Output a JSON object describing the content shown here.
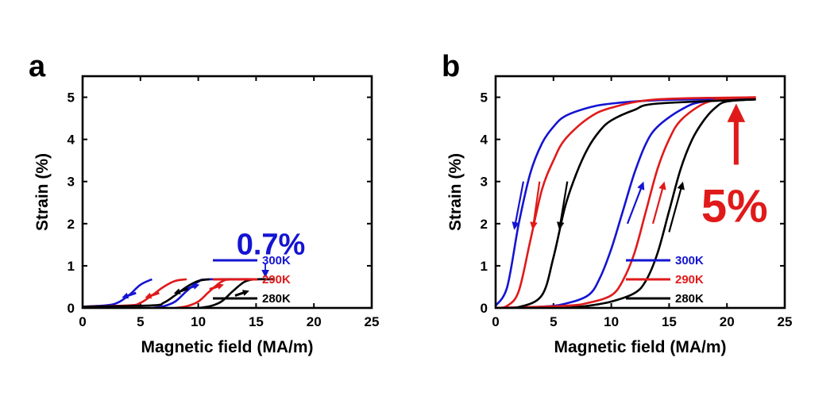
{
  "colors": {
    "300K": "#1414d2",
    "290K": "#e01a1a",
    "280K": "#000000"
  },
  "chart_data": [
    {
      "panel": "a",
      "type": "line",
      "xlabel": "Magnetic field (MA/m)",
      "ylabel": "Strain (%)",
      "xlim": [
        0,
        25
      ],
      "ylim": [
        0,
        5.5
      ],
      "xticks": [
        0,
        5,
        10,
        15,
        20,
        25
      ],
      "yticks": [
        0,
        1,
        2,
        3,
        4,
        5
      ],
      "annotation": {
        "text": "0.7%",
        "color": "#1414d2",
        "arrow_from": [
          15.8,
          1.05
        ],
        "arrow_to": [
          15.8,
          0.68
        ]
      },
      "legend_position": "bottom-right",
      "series": [
        {
          "name": "300K",
          "color": "#1414d2",
          "up": {
            "x": [
              0,
              2,
              3,
              4,
              5,
              6
            ],
            "y": [
              0.03,
              0.06,
              0.12,
              0.3,
              0.55,
              0.68
            ]
          },
          "down": {
            "x": [
              6,
              7,
              8,
              9,
              10,
              11,
              16.5
            ],
            "y": [
              0.0,
              0.04,
              0.15,
              0.4,
              0.62,
              0.68,
              0.68
            ]
          }
        },
        {
          "name": "290K",
          "color": "#e01a1a",
          "up": {
            "x": [
              0,
              4,
              5,
              6,
              7,
              8,
              9
            ],
            "y": [
              0.03,
              0.06,
              0.12,
              0.3,
              0.5,
              0.64,
              0.68
            ]
          },
          "down": {
            "x": [
              8,
              9,
              10,
              11,
              12,
              13,
              16.5
            ],
            "y": [
              0.0,
              0.04,
              0.15,
              0.4,
              0.62,
              0.68,
              0.68
            ]
          }
        },
        {
          "name": "280K",
          "color": "#000000",
          "up": {
            "x": [
              0,
              6,
              7,
              8,
              9,
              10,
              11
            ],
            "y": [
              0.03,
              0.06,
              0.12,
              0.3,
              0.5,
              0.64,
              0.68
            ]
          },
          "down": {
            "x": [
              10,
              11,
              12,
              13,
              14,
              15,
              16.5
            ],
            "y": [
              0.0,
              0.04,
              0.15,
              0.4,
              0.62,
              0.68,
              0.68
            ]
          }
        }
      ],
      "direction_arrows": [
        {
          "series": "300K",
          "x": 4.0,
          "y": 0.3,
          "dir": "left"
        },
        {
          "series": "300K",
          "x": 9.5,
          "y": 0.5,
          "dir": "right"
        },
        {
          "series": "290K",
          "x": 6.0,
          "y": 0.3,
          "dir": "left"
        },
        {
          "series": "290K",
          "x": 11.6,
          "y": 0.5,
          "dir": "right"
        },
        {
          "series": "280K",
          "x": 8.5,
          "y": 0.4,
          "dir": "left"
        },
        {
          "series": "280K",
          "x": 13.8,
          "y": 0.35,
          "dir": "right"
        }
      ]
    },
    {
      "panel": "b",
      "type": "line",
      "xlabel": "Magnetic field (MA/m)",
      "ylabel": "Strain (%)",
      "xlim": [
        0,
        25
      ],
      "ylim": [
        0,
        5.5
      ],
      "xticks": [
        0,
        5,
        10,
        15,
        20,
        25
      ],
      "yticks": [
        0,
        1,
        2,
        3,
        4,
        5
      ],
      "annotation": {
        "text": "5%",
        "color": "#e01a1a",
        "arrow_from": [
          20.8,
          3.4
        ],
        "arrow_to": [
          20.8,
          4.85
        ]
      },
      "legend_position": "bottom-right",
      "series": [
        {
          "name": "300K",
          "color": "#1414d2",
          "down": {
            "x": [
              0,
              1,
              2,
              3,
              4,
              5,
              6,
              8,
              10,
              14,
              22.5
            ],
            "y": [
              0.05,
              0.5,
              2.0,
              3.2,
              3.9,
              4.3,
              4.55,
              4.75,
              4.85,
              4.93,
              4.97
            ]
          },
          "up": {
            "x": [
              0,
              4,
              6,
              8,
              9,
              10,
              11,
              12,
              13,
              14,
              16,
              18,
              22.5
            ],
            "y": [
              0.0,
              0.03,
              0.1,
              0.3,
              0.7,
              1.4,
              2.3,
              3.2,
              3.9,
              4.3,
              4.7,
              4.9,
              4.95
            ]
          }
        },
        {
          "name": "290K",
          "color": "#e01a1a",
          "down": {
            "x": [
              0,
              1,
              2,
              3,
              4,
              5,
              6,
              8,
              10,
              14,
              22.5
            ],
            "y": [
              0.0,
              0.05,
              0.4,
              1.6,
              2.8,
              3.5,
              4.0,
              4.5,
              4.75,
              4.95,
              5.0
            ]
          },
          "up": {
            "x": [
              0,
              6,
              8,
              10,
              11,
              12,
              13,
              14,
              15,
              16,
              18,
              20,
              22.5
            ],
            "y": [
              0.0,
              0.05,
              0.12,
              0.3,
              0.65,
              1.3,
              2.3,
              3.3,
              4.0,
              4.45,
              4.85,
              4.97,
              5.0
            ]
          }
        },
        {
          "name": "280K",
          "color": "#000000",
          "down": {
            "x": [
              0,
              2,
              4,
              5,
              6,
              7,
              8,
              9,
              10,
              12,
              14,
              22.5
            ],
            "y": [
              0.0,
              0.02,
              0.3,
              1.2,
              2.4,
              3.2,
              3.8,
              4.2,
              4.45,
              4.7,
              4.85,
              4.95
            ]
          },
          "up": {
            "x": [
              6,
              8,
              10,
              12,
              13,
              14,
              15,
              16,
              17,
              18,
              19,
              20,
              22.5
            ],
            "y": [
              0.0,
              0.05,
              0.15,
              0.35,
              0.65,
              1.3,
              2.3,
              3.3,
              4.0,
              4.45,
              4.75,
              4.9,
              4.95
            ]
          }
        }
      ],
      "direction_arrows": [
        {
          "series": "300K",
          "x1": 2.4,
          "y1": 3.0,
          "x2": 1.6,
          "y2": 1.85
        },
        {
          "series": "300K",
          "x1": 11.4,
          "y1": 2.0,
          "x2": 12.8,
          "y2": 3.0
        },
        {
          "series": "290K",
          "x1": 3.8,
          "y1": 3.0,
          "x2": 3.2,
          "y2": 1.85
        },
        {
          "series": "290K",
          "x1": 13.6,
          "y1": 2.0,
          "x2": 14.6,
          "y2": 3.0
        },
        {
          "series": "280K",
          "x1": 6.2,
          "y1": 3.0,
          "x2": 5.5,
          "y2": 1.85
        },
        {
          "series": "280K",
          "x1": 15.0,
          "y1": 1.8,
          "x2": 16.2,
          "y2": 3.0
        }
      ]
    }
  ]
}
